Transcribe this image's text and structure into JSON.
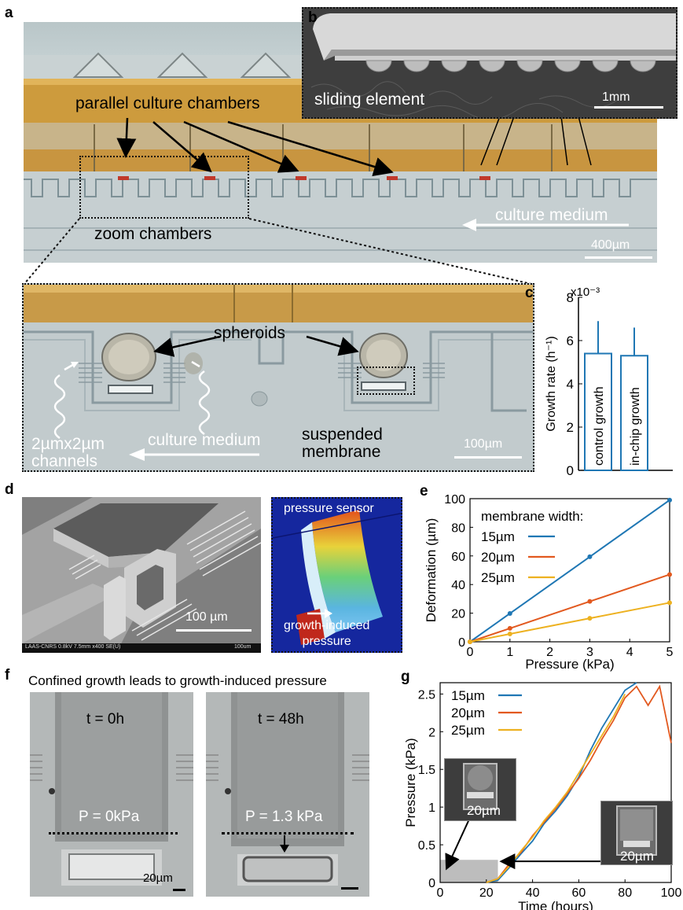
{
  "panels": {
    "a": {
      "letter": "a",
      "label_chambers": "parallel culture chambers",
      "label_zoom": "zoom chambers",
      "label_medium": "culture medium",
      "scale": "400µm"
    },
    "b": {
      "letter": "b",
      "label": "sliding element",
      "scale": "1mm"
    },
    "zoom": {
      "spheroids": "spheroids",
      "channels": "2µmx2µm\nchannels",
      "medium": "culture medium",
      "membrane": "suspended\nmembrane",
      "scale": "100µm"
    },
    "c": {
      "letter": "c"
    },
    "d": {
      "letter": "d",
      "scale": "100 µm",
      "sem_info": "LAAS-CNRS 0.8kV 7.5mm x400 SE(U)",
      "sem_scale": "100um",
      "sensor_label": "pressure sensor",
      "growth_label": "growth-induced\npressure"
    },
    "e": {
      "letter": "e"
    },
    "f": {
      "letter": "f",
      "title": "Confined growth leads to growth-induced pressure",
      "t0": "t = 0h",
      "t48": "t = 48h",
      "p0": "P = 0kPa",
      "p48": "P = 1.3 kPa",
      "scale": "20µm"
    },
    "g": {
      "letter": "g",
      "inset_scale1": "20µm",
      "inset_scale2": "20µm"
    }
  },
  "chart_data": [
    {
      "id": "c",
      "type": "bar",
      "categories": [
        "control growth",
        "in-chip growth"
      ],
      "values": [
        5.4,
        5.3
      ],
      "errors": [
        1.5,
        1.3
      ],
      "ylabel": "Growth rate (h⁻¹)",
      "multiplier": "x10⁻³",
      "ylim": [
        0,
        8
      ],
      "yticks": [
        0,
        2,
        4,
        6,
        8
      ],
      "color": "#1f77b4"
    },
    {
      "id": "e",
      "type": "line",
      "xlabel": "Pressure (kPa)",
      "ylabel": "Deformation (µm)",
      "xlim": [
        0,
        5
      ],
      "ylim": [
        0,
        100
      ],
      "xticks": [
        0,
        1,
        2,
        3,
        4,
        5
      ],
      "yticks": [
        0,
        20,
        40,
        60,
        80,
        100
      ],
      "legend_title": "membrane width:",
      "x": [
        0,
        1,
        3,
        5
      ],
      "series": [
        {
          "name": "15µm",
          "values": [
            0,
            19.8,
            59.4,
            99
          ],
          "color": "#1f77b4"
        },
        {
          "name": "20µm",
          "values": [
            0,
            9.4,
            28.2,
            47
          ],
          "color": "#e2591f"
        },
        {
          "name": "25µm",
          "values": [
            0,
            5.5,
            16.4,
            27.3
          ],
          "color": "#edb120"
        }
      ]
    },
    {
      "id": "g",
      "type": "line",
      "xlabel": "Time (hours)",
      "ylabel": "Pressure (kPa)",
      "xlim": [
        0,
        100
      ],
      "ylim": [
        0,
        2.65
      ],
      "xticks": [
        0,
        20,
        40,
        60,
        80,
        100
      ],
      "yticks": [
        0,
        0.5,
        1,
        1.5,
        2,
        2.5
      ],
      "series": [
        {
          "name": "15µm",
          "color": "#1f77b4",
          "x": [
            20,
            25,
            30,
            35,
            40,
            45,
            50,
            55,
            60,
            65,
            70,
            75,
            80,
            85
          ],
          "y": [
            0,
            0.03,
            0.2,
            0.38,
            0.55,
            0.78,
            0.95,
            1.15,
            1.4,
            1.75,
            2.05,
            2.3,
            2.55,
            2.7
          ]
        },
        {
          "name": "20µm",
          "color": "#e2591f",
          "x": [
            20,
            25,
            30,
            35,
            40,
            45,
            50,
            55,
            60,
            65,
            70,
            75,
            80,
            85,
            90,
            95,
            100
          ],
          "y": [
            0,
            0.05,
            0.25,
            0.4,
            0.62,
            0.8,
            0.98,
            1.18,
            1.38,
            1.62,
            1.9,
            2.15,
            2.45,
            2.6,
            2.35,
            2.6,
            1.85
          ]
        },
        {
          "name": "25µm",
          "color": "#edb120",
          "x": [
            20,
            25,
            30,
            35,
            40,
            45,
            50,
            55,
            60,
            65,
            70,
            75,
            80
          ],
          "y": [
            0,
            0.05,
            0.22,
            0.42,
            0.6,
            0.82,
            1.0,
            1.2,
            1.45,
            1.7,
            1.95,
            2.2,
            2.5
          ]
        }
      ]
    }
  ]
}
